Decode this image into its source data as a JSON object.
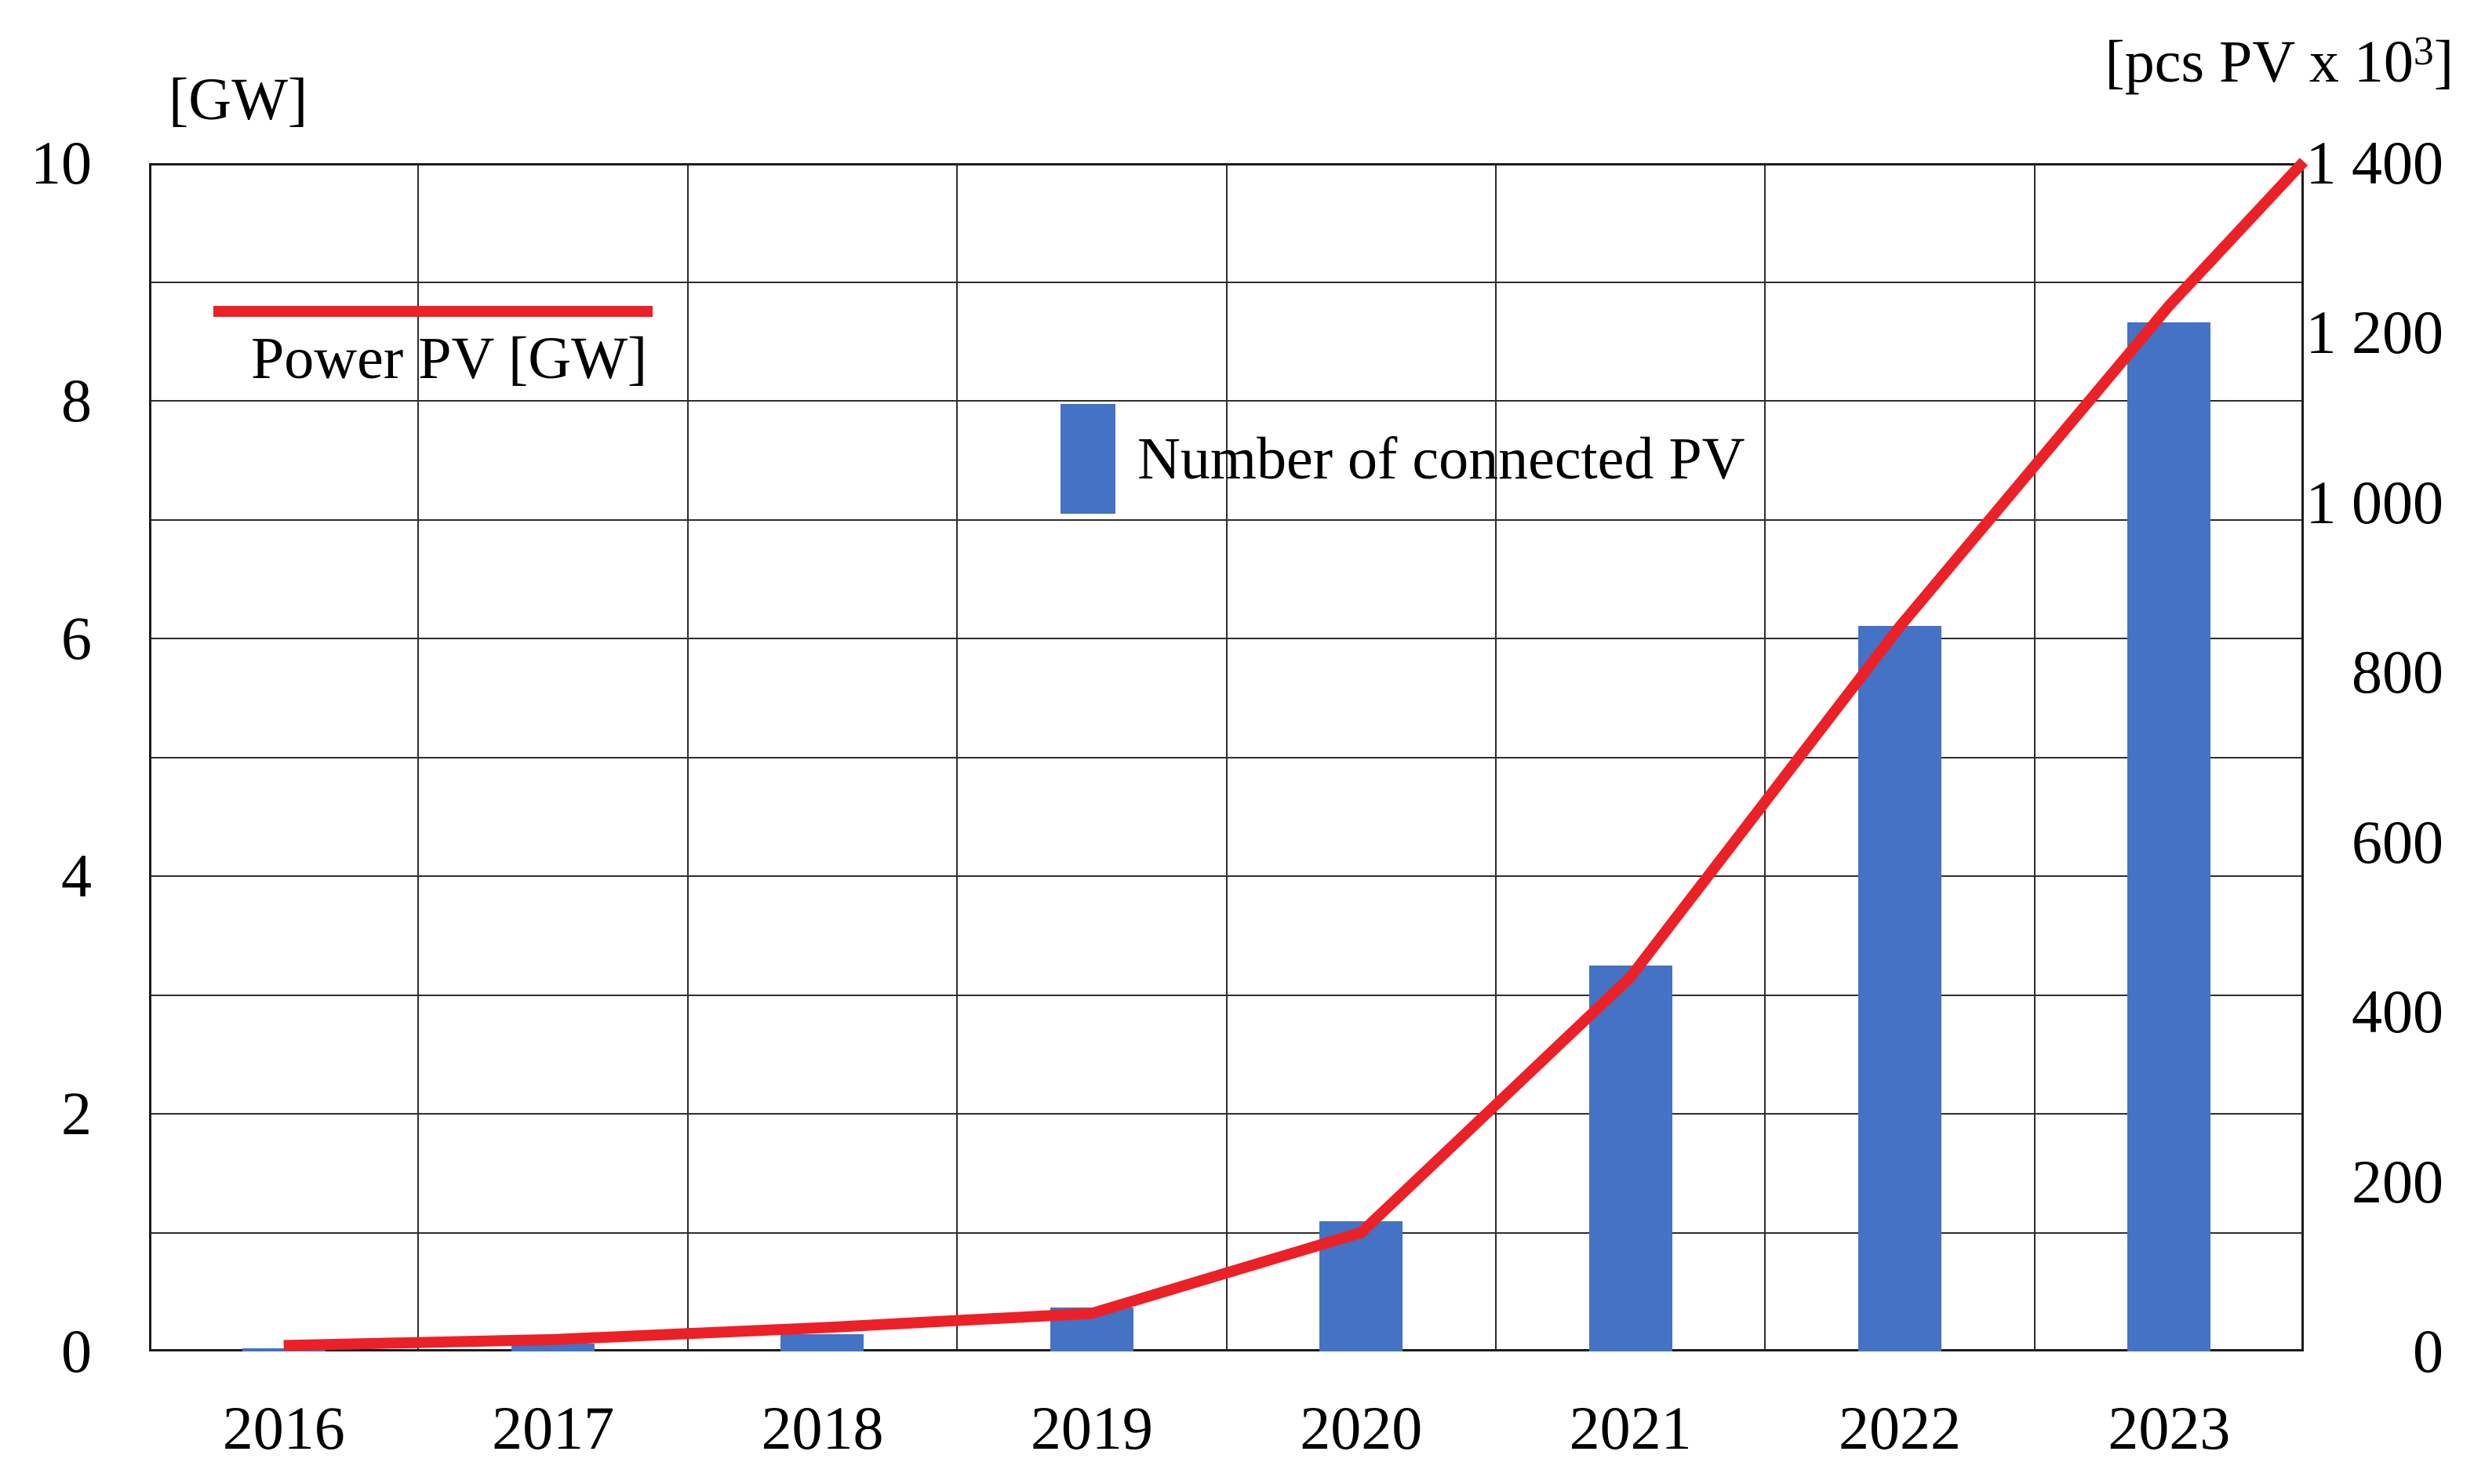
{
  "figure": {
    "left_axis": {
      "title": "[GW]",
      "tick_labels": [
        "10",
        "8",
        "6",
        "4",
        "2",
        "0"
      ],
      "tick_values": [
        10,
        8,
        6,
        4,
        2,
        0
      ],
      "range": [
        0,
        10
      ]
    },
    "right_axis": {
      "title_prefix": "[pcs PV x 10",
      "title_sup": "3",
      "title_suffix": "]",
      "tick_labels": [
        "1 400",
        "1 200",
        "1 000",
        "800",
        "600",
        "400",
        "200",
        "0"
      ],
      "tick_values": [
        1400,
        1200,
        1000,
        800,
        600,
        400,
        200,
        0
      ],
      "range": [
        0,
        1400
      ]
    },
    "legend": {
      "line_label": "Power PV [GW]",
      "bar_label": "Number of connected PV"
    },
    "colors": {
      "line_red": "#EB2127",
      "bar_blue": "#4472C4",
      "grid": "#2E2E2E",
      "frame": "#1C1C1C",
      "text": "#000000",
      "background": "#FFFFFF"
    }
  },
  "chart_data": {
    "type": "bar+line combo",
    "categories": [
      "2016",
      "2017",
      "2018",
      "2019",
      "2020",
      "2021",
      "2022",
      "2023"
    ],
    "series": [
      {
        "name": "Power PV [GW]",
        "type": "line",
        "axis": "left",
        "values": [
          0.05,
          0.1,
          0.2,
          0.32,
          1.0,
          3.15,
          6.1,
          8.8
        ],
        "extra_point_at_right_edge": 10.0
      },
      {
        "name": "Number of connected PV",
        "type": "bar",
        "axis": "right",
        "values": [
          4,
          9,
          20,
          52,
          153,
          455,
          855,
          1212
        ]
      }
    ],
    "title": "",
    "xlabel": "",
    "ylabel_left": "[GW]",
    "ylabel_right": "[pcs PV x 10^3]",
    "ylim_left": [
      0,
      10
    ],
    "ylim_right": [
      0,
      1400
    ],
    "grid": "horizontal lines every 1 GW, vertical line per year column, full frame",
    "legend_position": "inside plot: line legend upper-left, bar legend upper-middle"
  }
}
